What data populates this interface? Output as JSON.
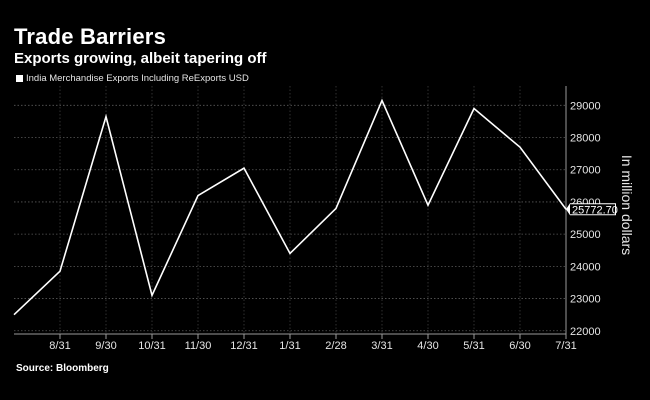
{
  "chart_data": {
    "type": "line",
    "title": "Trade Barriers",
    "subtitle": "Exports growing, albeit tapering off",
    "source": "Source: Bloomberg",
    "ylabel": "In million dollars",
    "ylim": [
      21900,
      29600
    ],
    "yticks": [
      22000,
      23000,
      24000,
      25000,
      26000,
      27000,
      28000,
      29000
    ],
    "x_tick_labels": [
      "8/31",
      "9/30",
      "10/31",
      "11/30",
      "12/31",
      "1/31",
      "2/28",
      "3/31",
      "4/30",
      "5/31",
      "6/30",
      "7/31"
    ],
    "grid": true,
    "legend": "top-left",
    "last_value_label": "25772.70",
    "series": [
      {
        "name": "India Merchandise Exports Including ReExports USD",
        "color": "#ffffff",
        "x": [
          "7/31",
          "8/31",
          "9/30",
          "10/31",
          "11/30",
          "12/31",
          "1/31",
          "2/28",
          "3/31",
          "4/30",
          "5/31",
          "6/30",
          "7/31"
        ],
        "values": [
          22500,
          23850,
          28650,
          23100,
          26200,
          27050,
          24400,
          25800,
          29150,
          25900,
          28900,
          27700,
          25772.7
        ]
      }
    ]
  }
}
